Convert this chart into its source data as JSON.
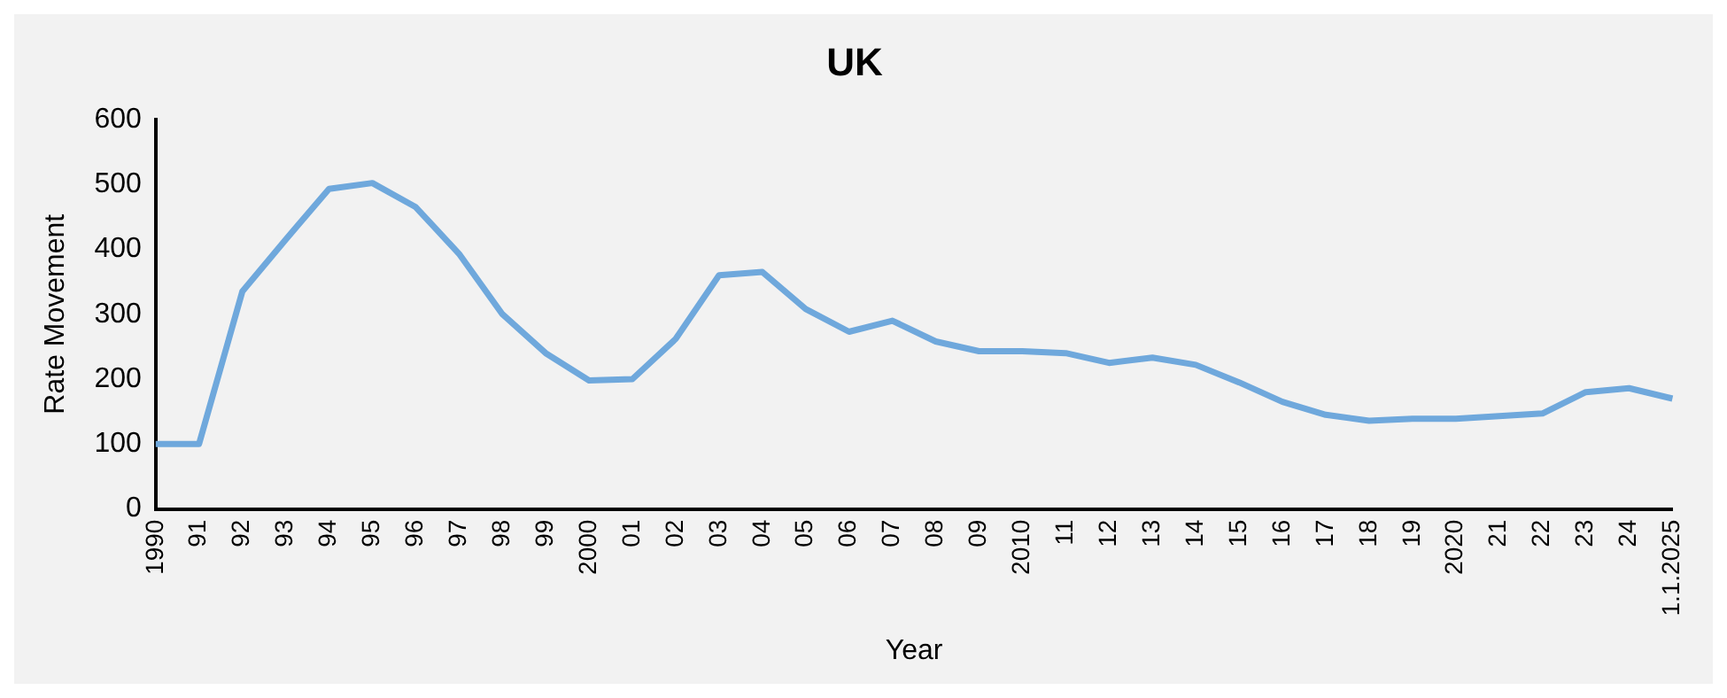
{
  "chart_data": {
    "type": "line",
    "title": "UK",
    "xlabel": "Year",
    "ylabel": "Rate Movement",
    "categories": [
      "1990",
      "91",
      "92",
      "93",
      "94",
      "95",
      "96",
      "97",
      "98",
      "99",
      "2000",
      "01",
      "02",
      "03",
      "04",
      "05",
      "06",
      "07",
      "08",
      "09",
      "2010",
      "11",
      "12",
      "13",
      "14",
      "15",
      "16",
      "17",
      "18",
      "19",
      "2020",
      "21",
      "22",
      "23",
      "24",
      "1.1.2025"
    ],
    "series": [
      {
        "color": "#6fa8dc",
        "values": [
          100,
          100,
          335,
          415,
          493,
          502,
          465,
          393,
          300,
          240,
          198,
          200,
          262,
          360,
          365,
          308,
          273,
          290,
          258,
          243,
          243,
          240,
          225,
          233,
          222,
          195,
          165,
          145,
          136,
          139,
          139,
          143,
          147,
          180,
          186,
          170
        ]
      }
    ],
    "ylim": [
      0,
      600
    ],
    "yticks": [
      0,
      100,
      200,
      300,
      400,
      500,
      600
    ],
    "grid": false,
    "legend": false,
    "marker": "none",
    "line_style": "solid"
  }
}
